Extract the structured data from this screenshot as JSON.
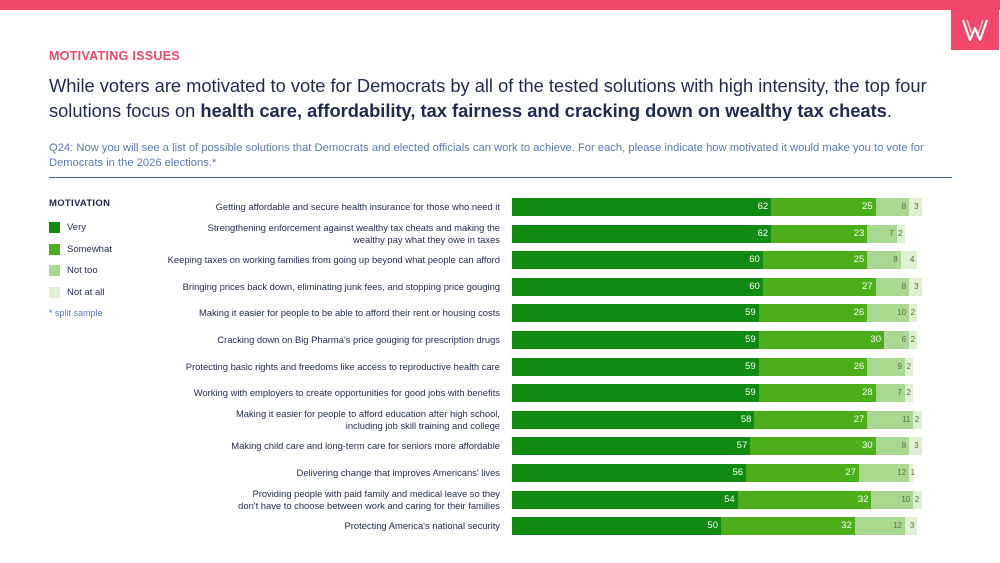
{
  "header": {
    "section_label": "MOTIVATING ISSUES",
    "headline_plain": "While voters are motivated to vote for Democrats by all of the tested solutions with high intensity, the top four solutions focus on ",
    "headline_bold": "health care, affordability, tax fairness and cracking down on wealthy tax cheats",
    "headline_end": ".",
    "question": "Q24: Now you will see a list of possible solutions that Democrats and elected officials can work to achieve. For each, please indicate how motivated it would make you to vote for Democrats in the 2026 elections.*"
  },
  "legend": {
    "title": "MOTIVATION",
    "note": "* split sample"
  },
  "colors": {
    "accent": "#f0476b",
    "very": "#108a10",
    "somewhat": "#4cae18",
    "not_too": "#a9d890",
    "not_at_all": "#dff0d4"
  },
  "chart_data": {
    "type": "bar",
    "orientation": "horizontal",
    "stacked": true,
    "series": [
      {
        "name": "Very",
        "values": [
          62,
          62,
          60,
          60,
          59,
          59,
          59,
          59,
          58,
          57,
          56,
          54,
          50
        ]
      },
      {
        "name": "Somewhat",
        "values": [
          25,
          23,
          25,
          27,
          26,
          30,
          26,
          28,
          27,
          30,
          27,
          32,
          32
        ]
      },
      {
        "name": "Not too",
        "values": [
          8,
          7,
          8,
          8,
          10,
          6,
          9,
          7,
          11,
          8,
          12,
          10,
          12
        ]
      },
      {
        "name": "Not at all",
        "values": [
          3,
          2,
          4,
          3,
          2,
          2,
          2,
          2,
          2,
          3,
          1,
          2,
          3
        ]
      }
    ],
    "categories": [
      [
        "Getting affordable and secure health insurance for those who need it"
      ],
      [
        "Strengthening enforcement against wealthy tax cheats and making the",
        "wealthy pay what they owe in taxes"
      ],
      [
        "Keeping taxes on working families from going up beyond what people can afford"
      ],
      [
        "Bringing prices back down, eliminating junk fees, and stopping price gouging"
      ],
      [
        "Making it easier for people to be able to afford their rent or housing costs"
      ],
      [
        "Cracking down on Big Pharma's price gouging for prescription drugs"
      ],
      [
        "Protecting basic rights and freedoms like access to reproductive health care"
      ],
      [
        "Working with employers to create opportunities for good jobs with benefits"
      ],
      [
        "Making it easier for people to afford education after high school,",
        "including job skill training and college"
      ],
      [
        "Making child care and long-term care for seniors more affordable"
      ],
      [
        "Delivering change that improves Americans' lives"
      ],
      [
        "Providing people with paid family and medical leave so they",
        "don't have to choose between work and caring for their families"
      ],
      [
        "Protecting America's national security"
      ]
    ],
    "xlim": [
      0,
      100
    ],
    "legend_position": "left"
  }
}
